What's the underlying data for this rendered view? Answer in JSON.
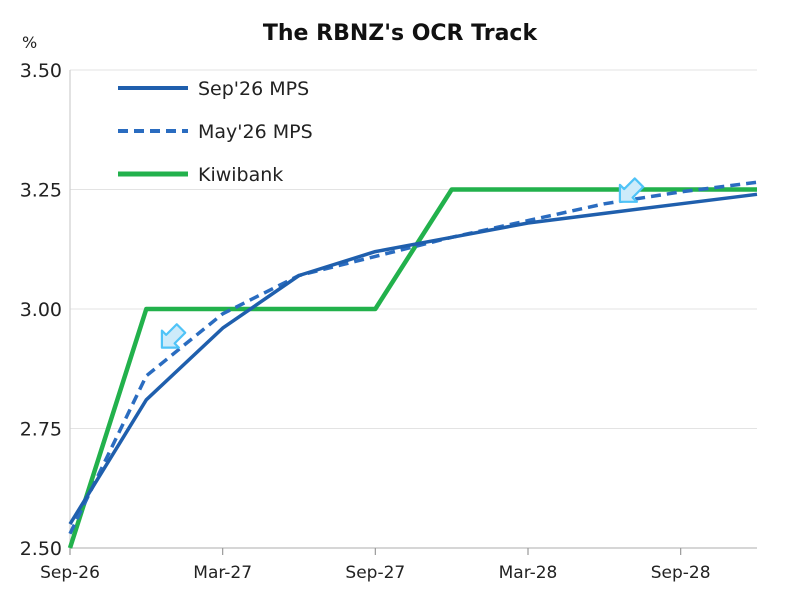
{
  "chart_data": {
    "type": "line",
    "title": "The RBNZ's OCR Track",
    "ylabel": "%",
    "xlabel": "",
    "ylim": [
      2.5,
      3.5
    ],
    "yticks": [
      "2.50",
      "2.75",
      "3.00",
      "3.25",
      "3.50"
    ],
    "xlim": [
      "2026-09",
      "2028-12"
    ],
    "xticks": [
      {
        "label": "Sep-26",
        "date": "2026-09"
      },
      {
        "label": "Mar-27",
        "date": "2027-03"
      },
      {
        "label": "Sep-27",
        "date": "2027-09"
      },
      {
        "label": "Mar-28",
        "date": "2028-03"
      },
      {
        "label": "Sep-28",
        "date": "2028-09"
      }
    ],
    "grid": "horizontal",
    "legend": "top-left",
    "series": [
      {
        "name": "Sep'26 MPS",
        "style": "solid",
        "color": "#1f5fad",
        "points": [
          [
            "2026-09",
            2.55
          ],
          [
            "2026-12",
            2.81
          ],
          [
            "2027-03",
            2.96
          ],
          [
            "2027-06",
            3.07
          ],
          [
            "2027-09",
            3.12
          ],
          [
            "2027-12",
            3.15
          ],
          [
            "2028-03",
            3.18
          ],
          [
            "2028-06",
            3.2
          ],
          [
            "2028-09",
            3.22
          ],
          [
            "2028-12",
            3.24
          ]
        ]
      },
      {
        "name": "May'26 MPS",
        "style": "dashed",
        "color": "#2a6cc0",
        "points": [
          [
            "2026-09",
            2.53
          ],
          [
            "2026-12",
            2.86
          ],
          [
            "2027-03",
            2.99
          ],
          [
            "2027-06",
            3.07
          ],
          [
            "2027-09",
            3.11
          ],
          [
            "2027-12",
            3.15
          ],
          [
            "2028-03",
            3.185
          ],
          [
            "2028-06",
            3.22
          ],
          [
            "2028-09",
            3.245
          ],
          [
            "2028-12",
            3.265
          ]
        ]
      },
      {
        "name": "Kiwibank",
        "style": "solid",
        "color": "#22b14c",
        "points": [
          [
            "2026-09",
            2.5
          ],
          [
            "2026-12",
            3.0
          ],
          [
            "2027-03",
            3.0
          ],
          [
            "2027-06",
            3.0
          ],
          [
            "2027-09",
            3.0
          ],
          [
            "2027-12",
            3.25
          ],
          [
            "2028-03",
            3.25
          ],
          [
            "2028-06",
            3.25
          ],
          [
            "2028-09",
            3.25
          ],
          [
            "2028-12",
            3.25
          ]
        ]
      }
    ],
    "annotations": [
      {
        "type": "arrow",
        "at": [
          "2027-01",
          2.94
        ],
        "color": "#4fc3f7",
        "fill": "#cdebfa",
        "direction": "down-left"
      },
      {
        "type": "arrow",
        "at": [
          "2028-07",
          3.245
        ],
        "color": "#4fc3f7",
        "fill": "#cdebfa",
        "direction": "down-left"
      }
    ]
  }
}
